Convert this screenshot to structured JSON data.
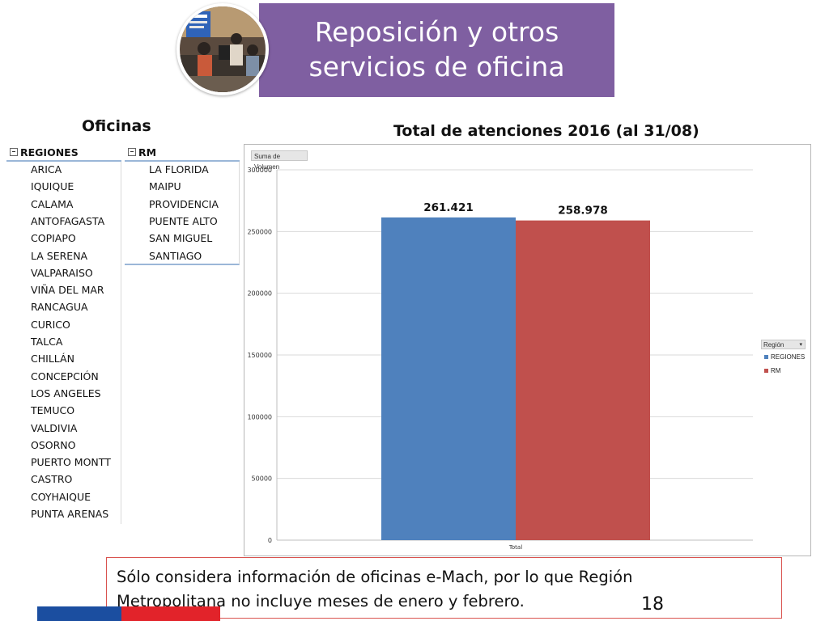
{
  "header": {
    "title_line1": "Reposición y otros",
    "title_line2": "servicios de oficina"
  },
  "offices": {
    "heading": "Oficinas",
    "regiones": {
      "label": "REGIONES",
      "items": [
        "ARICA",
        "IQUIQUE",
        "CALAMA",
        "ANTOFAGASTA",
        "COPIAPO",
        "LA SERENA",
        "VALPARAISO",
        "VIÑA DEL MAR",
        "RANCAGUA",
        "CURICO",
        "TALCA",
        "CHILLÁN",
        "CONCEPCIÓN",
        "LOS ANGELES",
        "TEMUCO",
        "VALDIVIA",
        "OSORNO",
        "PUERTO MONTT",
        "CASTRO",
        "COYHAIQUE",
        "PUNTA ARENAS"
      ]
    },
    "rm": {
      "label": "RM",
      "items": [
        "LA FLORIDA",
        "MAIPU",
        "PROVIDENCIA",
        "PUENTE ALTO",
        "SAN MIGUEL",
        "SANTIAGO"
      ]
    }
  },
  "chart_title": "Total de atenciones 2016 (al 31/08)",
  "chart_data": {
    "type": "bar",
    "title": "Total de atenciones 2016 (al 31/08)",
    "field_button": "Suma de Volumen",
    "categories": [
      "Total"
    ],
    "series": [
      {
        "name": "REGIONES",
        "values": [
          261421
        ],
        "label": "261.421",
        "color": "#4f81bd"
      },
      {
        "name": "RM",
        "values": [
          258978
        ],
        "label": "258.978",
        "color": "#c0504d"
      }
    ],
    "ylim": [
      0,
      300000
    ],
    "yticks": [
      0,
      50000,
      100000,
      150000,
      200000,
      250000,
      300000
    ],
    "ytick_labels": [
      "0",
      "50000",
      "100000",
      "150000",
      "200000",
      "250000",
      "300000"
    ],
    "legend_title": "Región",
    "legend_position": "right",
    "grid": true
  },
  "note": {
    "line1": "Sólo considera información de oficinas e-Mach, por lo que Región",
    "line2": "Metropolitana no incluye meses de enero y febrero."
  },
  "page_number": "18",
  "colors": {
    "banner": "#7f5fa1",
    "regiones": "#4f81bd",
    "rm": "#c0504d",
    "accent_blue": "#1b4ea0",
    "accent_red": "#e2232a",
    "note_border": "#d9534f"
  }
}
